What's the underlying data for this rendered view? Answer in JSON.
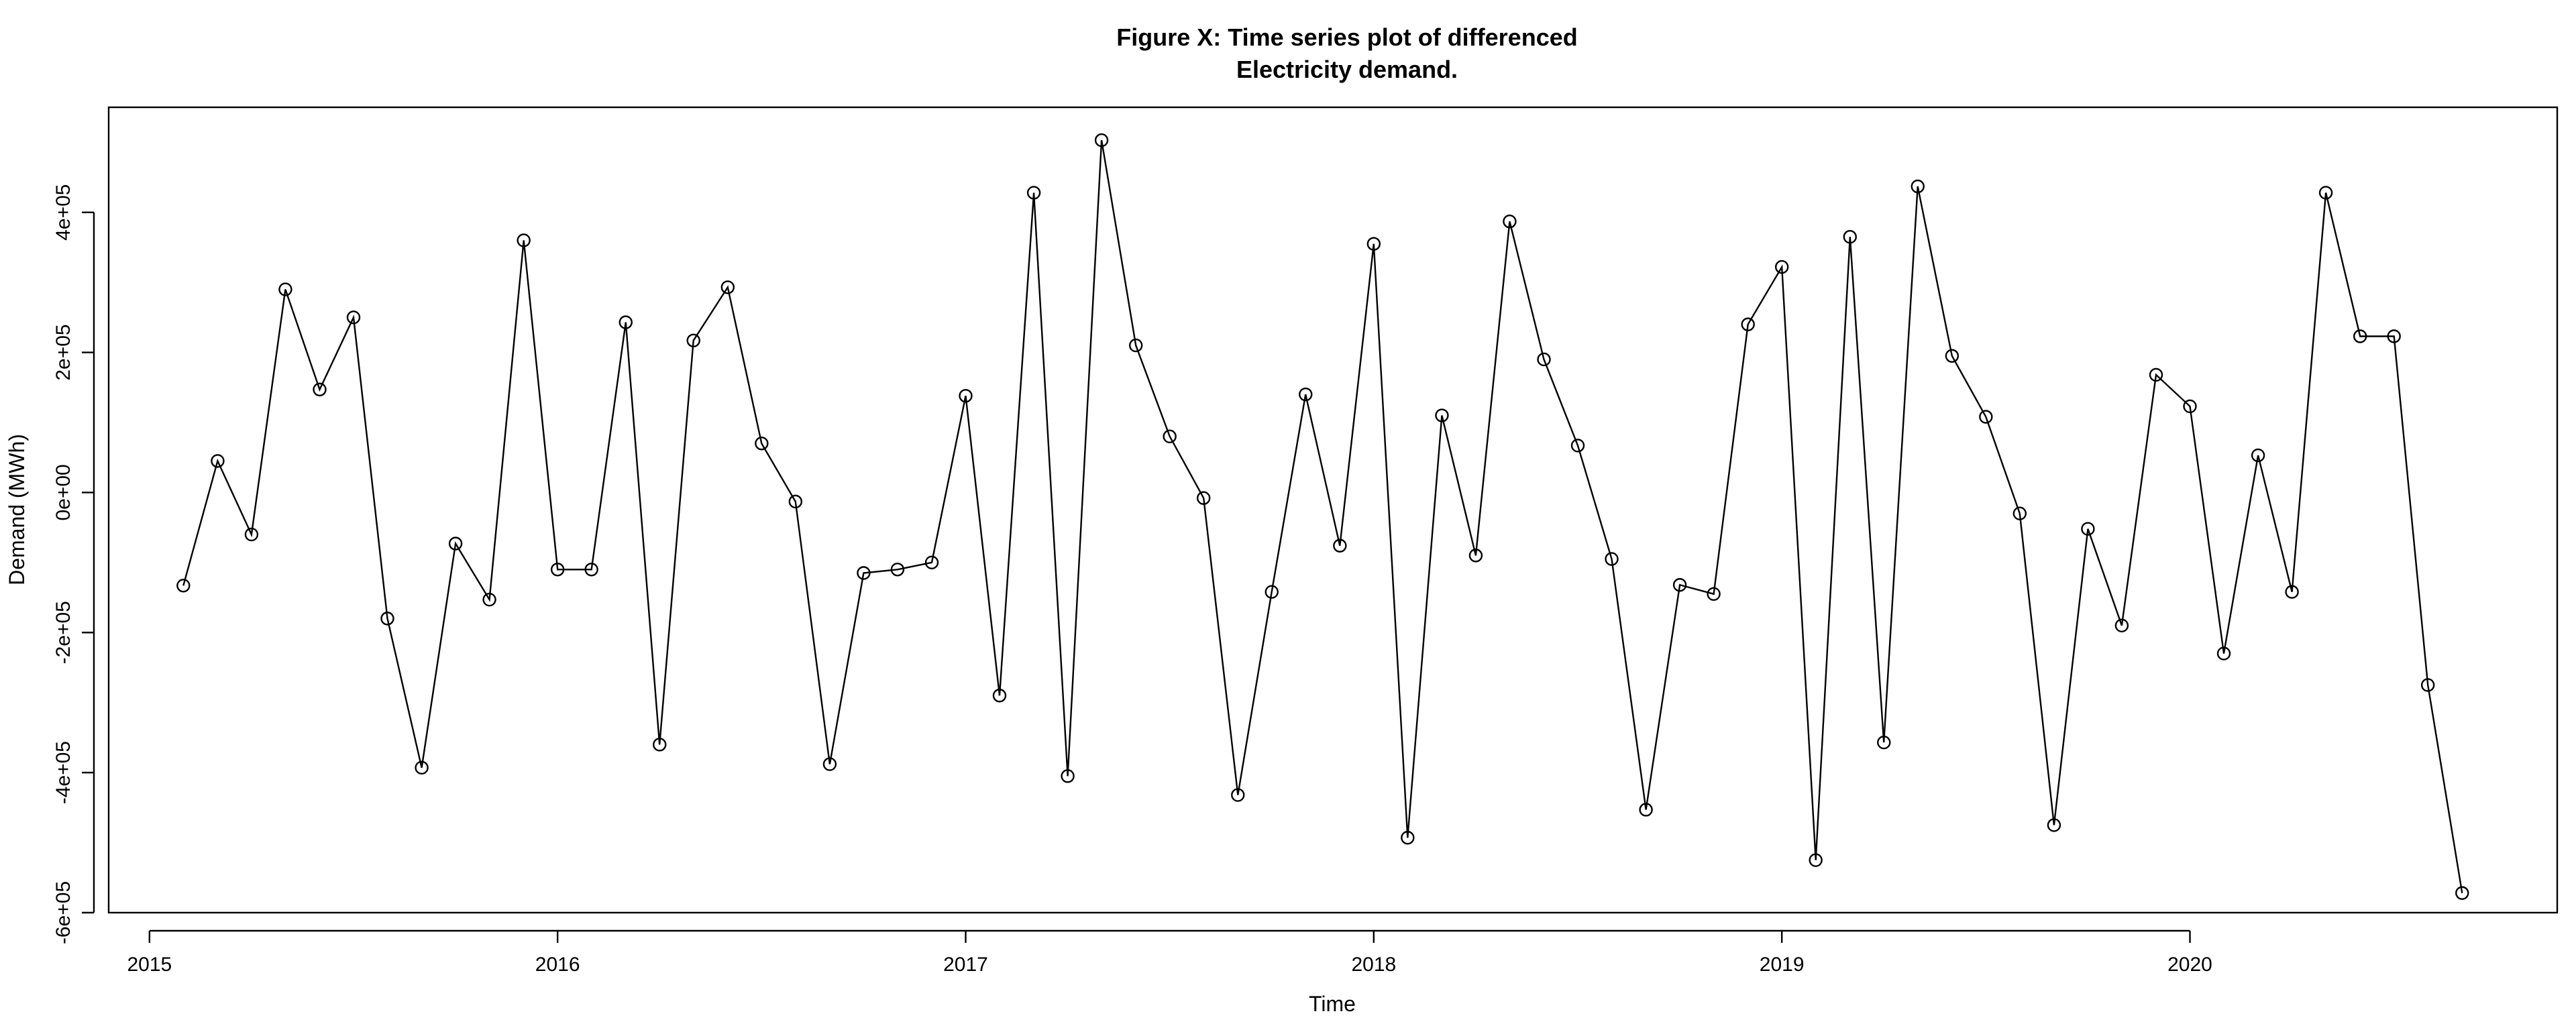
{
  "chart_data": {
    "type": "line",
    "title_lines": [
      "Figure X: Time series plot of differenced",
      "Electricity demand."
    ],
    "xlabel": "Time",
    "ylabel": "Demand (MWh)",
    "xlim": [
      2014.9,
      2020.9
    ],
    "ylim": [
      -600000,
      550000
    ],
    "x_ticks": [
      2015,
      2016,
      2017,
      2018,
      2019,
      2020
    ],
    "x_tick_labels": [
      "2015",
      "2016",
      "2017",
      "2018",
      "2019",
      "2020"
    ],
    "y_ticks": [
      -600000,
      -400000,
      -200000,
      0,
      200000,
      400000
    ],
    "y_tick_labels": [
      "-6e+05",
      "-4e+05",
      "-2e+05",
      "0e+00",
      "2e+05",
      "4e+05"
    ],
    "grid": false,
    "legend": "none",
    "line_color": "#000000",
    "marker": "open-circle",
    "series": [
      {
        "x": [
          2015.083,
          2015.167,
          2015.25,
          2015.333,
          2015.417,
          2015.5,
          2015.583,
          2015.667,
          2015.75,
          2015.833,
          2015.917,
          2016.0,
          2016.083,
          2016.167,
          2016.25,
          2016.333,
          2016.417,
          2016.5,
          2016.583,
          2016.667,
          2016.75,
          2016.833,
          2016.917,
          2017.0,
          2017.083,
          2017.167,
          2017.25,
          2017.333,
          2017.417,
          2017.5,
          2017.583,
          2017.667,
          2017.75,
          2017.833,
          2017.917,
          2018.0,
          2018.083,
          2018.167,
          2018.25,
          2018.333,
          2018.417,
          2018.5,
          2018.583,
          2018.667,
          2018.75,
          2018.833,
          2018.917,
          2019.0,
          2019.083,
          2019.167,
          2019.25,
          2019.333,
          2019.417,
          2019.5,
          2019.583,
          2019.667,
          2019.75,
          2019.833,
          2019.917,
          2020.0,
          2020.083,
          2020.167,
          2020.25,
          2020.333,
          2020.417,
          2020.5,
          2020.583,
          2020.667
        ],
        "y": [
          -133000,
          45000,
          -60000,
          290000,
          147000,
          250000,
          -180000,
          -393000,
          -73000,
          -153000,
          360000,
          -110000,
          -110000,
          243000,
          -360000,
          217000,
          293000,
          70000,
          -13000,
          -388000,
          -115000,
          -110000,
          -100000,
          138000,
          -290000,
          428000,
          -405000,
          503000,
          210000,
          80000,
          -8000,
          -432000,
          -142000,
          140000,
          -76000,
          355000,
          -493000,
          110000,
          -90000,
          387000,
          190000,
          67000,
          -95000,
          -453000,
          -132000,
          -145000,
          240000,
          322000,
          -525000,
          365000,
          -357000,
          437000,
          195000,
          108000,
          -30000,
          -475000,
          -52000,
          -190000,
          168000,
          123000,
          -230000,
          53000,
          -142000,
          428000,
          223000,
          223000,
          -275000,
          -572000
        ]
      }
    ]
  }
}
